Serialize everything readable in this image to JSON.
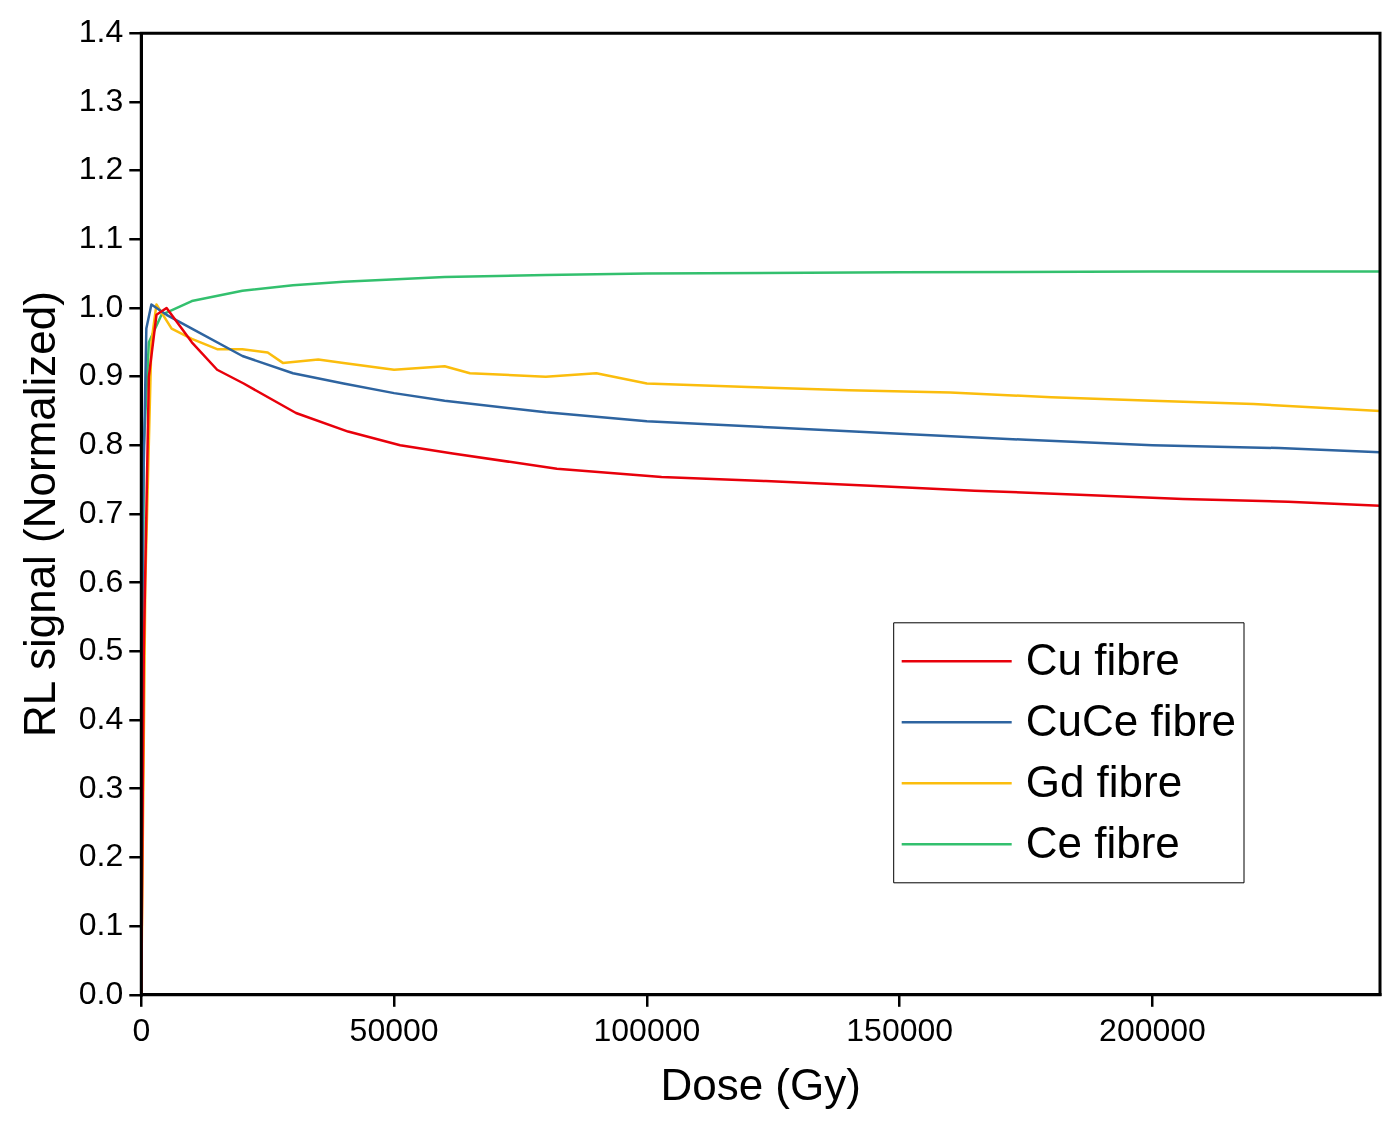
{
  "chart_data": {
    "type": "line",
    "xlabel": "Dose (Gy)",
    "ylabel": "RL signal (Normalized)",
    "xlim": [
      0,
      245000
    ],
    "xticks": [
      0,
      50000,
      100000,
      150000,
      200000
    ],
    "ylim": [
      0,
      1.4
    ],
    "yticks": [
      {
        "value": 0,
        "label": "0.0"
      },
      0.1,
      0.2,
      0.3,
      0.4,
      0.5,
      0.6,
      0.7,
      0.8,
      0.9,
      {
        "value": 1,
        "label": "1.0"
      },
      1.1,
      1.2,
      1.3,
      1.4
    ],
    "grid": false,
    "legend": "bottom right",
    "marker": "none",
    "line_style": "solid",
    "series": [
      {
        "name": "Cu fibre",
        "color": "#e8000b",
        "x": [
          0,
          500,
          1500,
          3000,
          5000,
          8000,
          10000,
          15000,
          20250,
          30600,
          40900,
          51200,
          61600,
          82200,
          102900,
          123500,
          144200,
          164800,
          185500,
          206000,
          226800,
          245000
        ],
        "values": [
          0,
          0.5,
          0.9,
          0.99,
          1.0,
          0.97,
          0.95,
          0.91,
          0.89,
          0.847,
          0.82,
          0.8,
          0.788,
          0.766,
          0.754,
          0.748,
          0.741,
          0.734,
          0.728,
          0.722,
          0.718,
          0.712
        ]
      },
      {
        "name": "CuCe fibre",
        "color": "#2e64a0",
        "x": [
          0,
          300,
          1000,
          2000,
          5000,
          10000,
          20000,
          30000,
          40000,
          50000,
          60000,
          80000,
          100000,
          125000,
          150000,
          175000,
          200000,
          225000,
          245000
        ],
        "values": [
          0,
          0.7,
          0.97,
          1.005,
          0.99,
          0.97,
          0.93,
          0.905,
          0.89,
          0.876,
          0.865,
          0.848,
          0.835,
          0.826,
          0.817,
          0.808,
          0.8,
          0.796,
          0.79
        ]
      },
      {
        "name": "Gd fibre",
        "color": "#fbbd0d",
        "x": [
          0,
          800,
          2000,
          3000,
          6000,
          10000,
          15000,
          20000,
          25000,
          28000,
          35000,
          40000,
          50000,
          60000,
          65000,
          80000,
          90000,
          100000,
          120000,
          140000,
          160000,
          180000,
          200000,
          220000,
          245000
        ],
        "values": [
          0,
          0.6,
          0.95,
          1.005,
          0.97,
          0.955,
          0.94,
          0.94,
          0.935,
          0.92,
          0.925,
          0.92,
          0.91,
          0.915,
          0.905,
          0.9,
          0.905,
          0.89,
          0.885,
          0.88,
          0.877,
          0.87,
          0.865,
          0.86,
          0.85
        ]
      },
      {
        "name": "Ce fibre",
        "color": "#33c06e",
        "x": [
          0,
          500,
          1500,
          4000,
          10000,
          20000,
          30000,
          40000,
          60000,
          80000,
          100000,
          150000,
          200000,
          245000
        ],
        "values": [
          0,
          0.8,
          0.95,
          0.99,
          1.01,
          1.025,
          1.033,
          1.038,
          1.045,
          1.048,
          1.05,
          1.052,
          1.053,
          1.053
        ]
      }
    ]
  }
}
